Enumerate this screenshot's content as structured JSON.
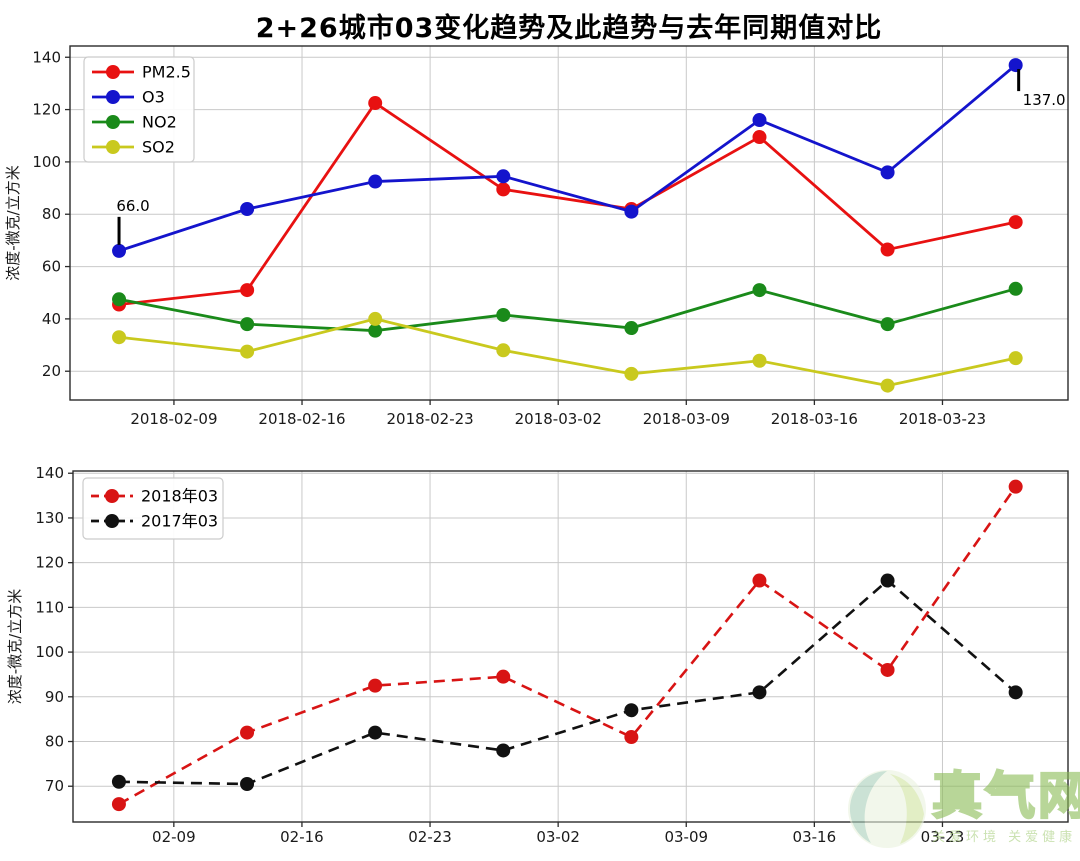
{
  "title": "2+26城市03变化趋势及此趋势与去年同期值对比",
  "watermark": {
    "name": "真气网",
    "slogan": "关爱环境 关爱健康",
    "logo": "leaf-person-circle-icon"
  },
  "colors": {
    "pm25": "#e81111",
    "o3": "#1414cc",
    "no2": "#1a8a1a",
    "so2": "#c9c91e",
    "y2018": "#d81414",
    "y2017": "#111111",
    "grid": "#c9c9c9",
    "spine": "#2b2b2b",
    "watermark_green": "#8abb55"
  },
  "chart_data": [
    {
      "type": "line",
      "title": "",
      "xlabel": "",
      "ylabel": "浓度-微克/立方米",
      "grid": true,
      "legend_position": "upper-left",
      "ylim": [
        9,
        144.3
      ],
      "yticks": [
        20,
        40,
        60,
        80,
        100,
        120,
        140
      ],
      "x_dates": [
        "2018-02-06",
        "2018-02-13",
        "2018-02-20",
        "2018-02-27",
        "2018-03-06",
        "2018-03-13",
        "2018-03-20",
        "2018-03-27"
      ],
      "x_days": [
        0,
        7,
        14,
        21,
        28,
        35,
        42,
        49
      ],
      "x_tick_days": [
        3,
        10,
        17,
        24,
        31,
        38,
        45
      ],
      "x_tick_labels": [
        "2018-02-09",
        "2018-02-16",
        "2018-02-23",
        "2018-03-02",
        "2018-03-09",
        "2018-03-16",
        "2018-03-23"
      ],
      "series": [
        {
          "name": "PM2.5",
          "color": "#e81111",
          "dash": false,
          "values": [
            45.5,
            51,
            122.5,
            89.5,
            82,
            109.5,
            66.5,
            77
          ]
        },
        {
          "name": "O3",
          "color": "#1414cc",
          "dash": false,
          "values": [
            66,
            82,
            92.5,
            94.5,
            81,
            116,
            96,
            137
          ]
        },
        {
          "name": "NO2",
          "color": "#1a8a1a",
          "dash": false,
          "values": [
            47.5,
            38,
            35.5,
            41.5,
            36.5,
            51,
            38,
            51.5
          ]
        },
        {
          "name": "SO2",
          "color": "#c9c91e",
          "dash": false,
          "values": [
            33,
            27.5,
            40,
            28,
            19,
            24,
            14.5,
            25
          ]
        }
      ],
      "annotations": [
        {
          "text": "66.0",
          "series": "O3",
          "point": 0,
          "placement": "above"
        },
        {
          "text": "137.0",
          "series": "O3",
          "point": 7,
          "placement": "below-right"
        }
      ]
    },
    {
      "type": "line",
      "title": "",
      "xlabel": "",
      "ylabel": "浓度-微克/立方米",
      "grid": true,
      "legend_position": "upper-left",
      "ylim": [
        62,
        140.5
      ],
      "yticks": [
        70,
        80,
        90,
        100,
        110,
        120,
        130,
        140
      ],
      "x_dates": [
        "02-06",
        "02-13",
        "02-20",
        "02-27",
        "03-06",
        "03-13",
        "03-20",
        "03-27"
      ],
      "x_days": [
        0,
        7,
        14,
        21,
        28,
        35,
        42,
        49
      ],
      "x_tick_days": [
        3,
        10,
        17,
        24,
        31,
        38,
        45
      ],
      "x_tick_labels": [
        "02-09",
        "02-16",
        "02-23",
        "03-02",
        "03-09",
        "03-16",
        "03-23"
      ],
      "series": [
        {
          "name": "2018年03",
          "color": "#d81414",
          "dash": true,
          "values": [
            66,
            82,
            92.5,
            94.5,
            81,
            116,
            96,
            137
          ]
        },
        {
          "name": "2017年03",
          "color": "#111111",
          "dash": true,
          "values": [
            71,
            70.5,
            82,
            78,
            87,
            91,
            116,
            91
          ]
        }
      ],
      "annotations": []
    }
  ]
}
